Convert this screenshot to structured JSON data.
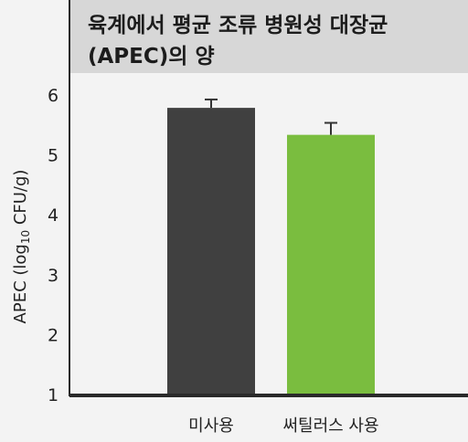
{
  "chart_data": {
    "type": "bar",
    "title_lines": [
      "육계에서 평균 조류 병원성 대장균",
      "(APEC)의 양"
    ],
    "ylabel": {
      "prefix": "APEC (log",
      "subscript": "10",
      "suffix": " CFU/g)"
    },
    "xlabel": "",
    "categories": [
      "미사용",
      "써틸러스 사용"
    ],
    "values": [
      5.8,
      5.35
    ],
    "errors": [
      0.14,
      0.2
    ],
    "colors": [
      "#404040",
      "#7abd3f"
    ],
    "ylim": [
      1,
      6.5
    ],
    "yticks": [
      "1",
      "2",
      "3",
      "4",
      "5",
      "6"
    ],
    "grid": false,
    "legend": "none"
  }
}
